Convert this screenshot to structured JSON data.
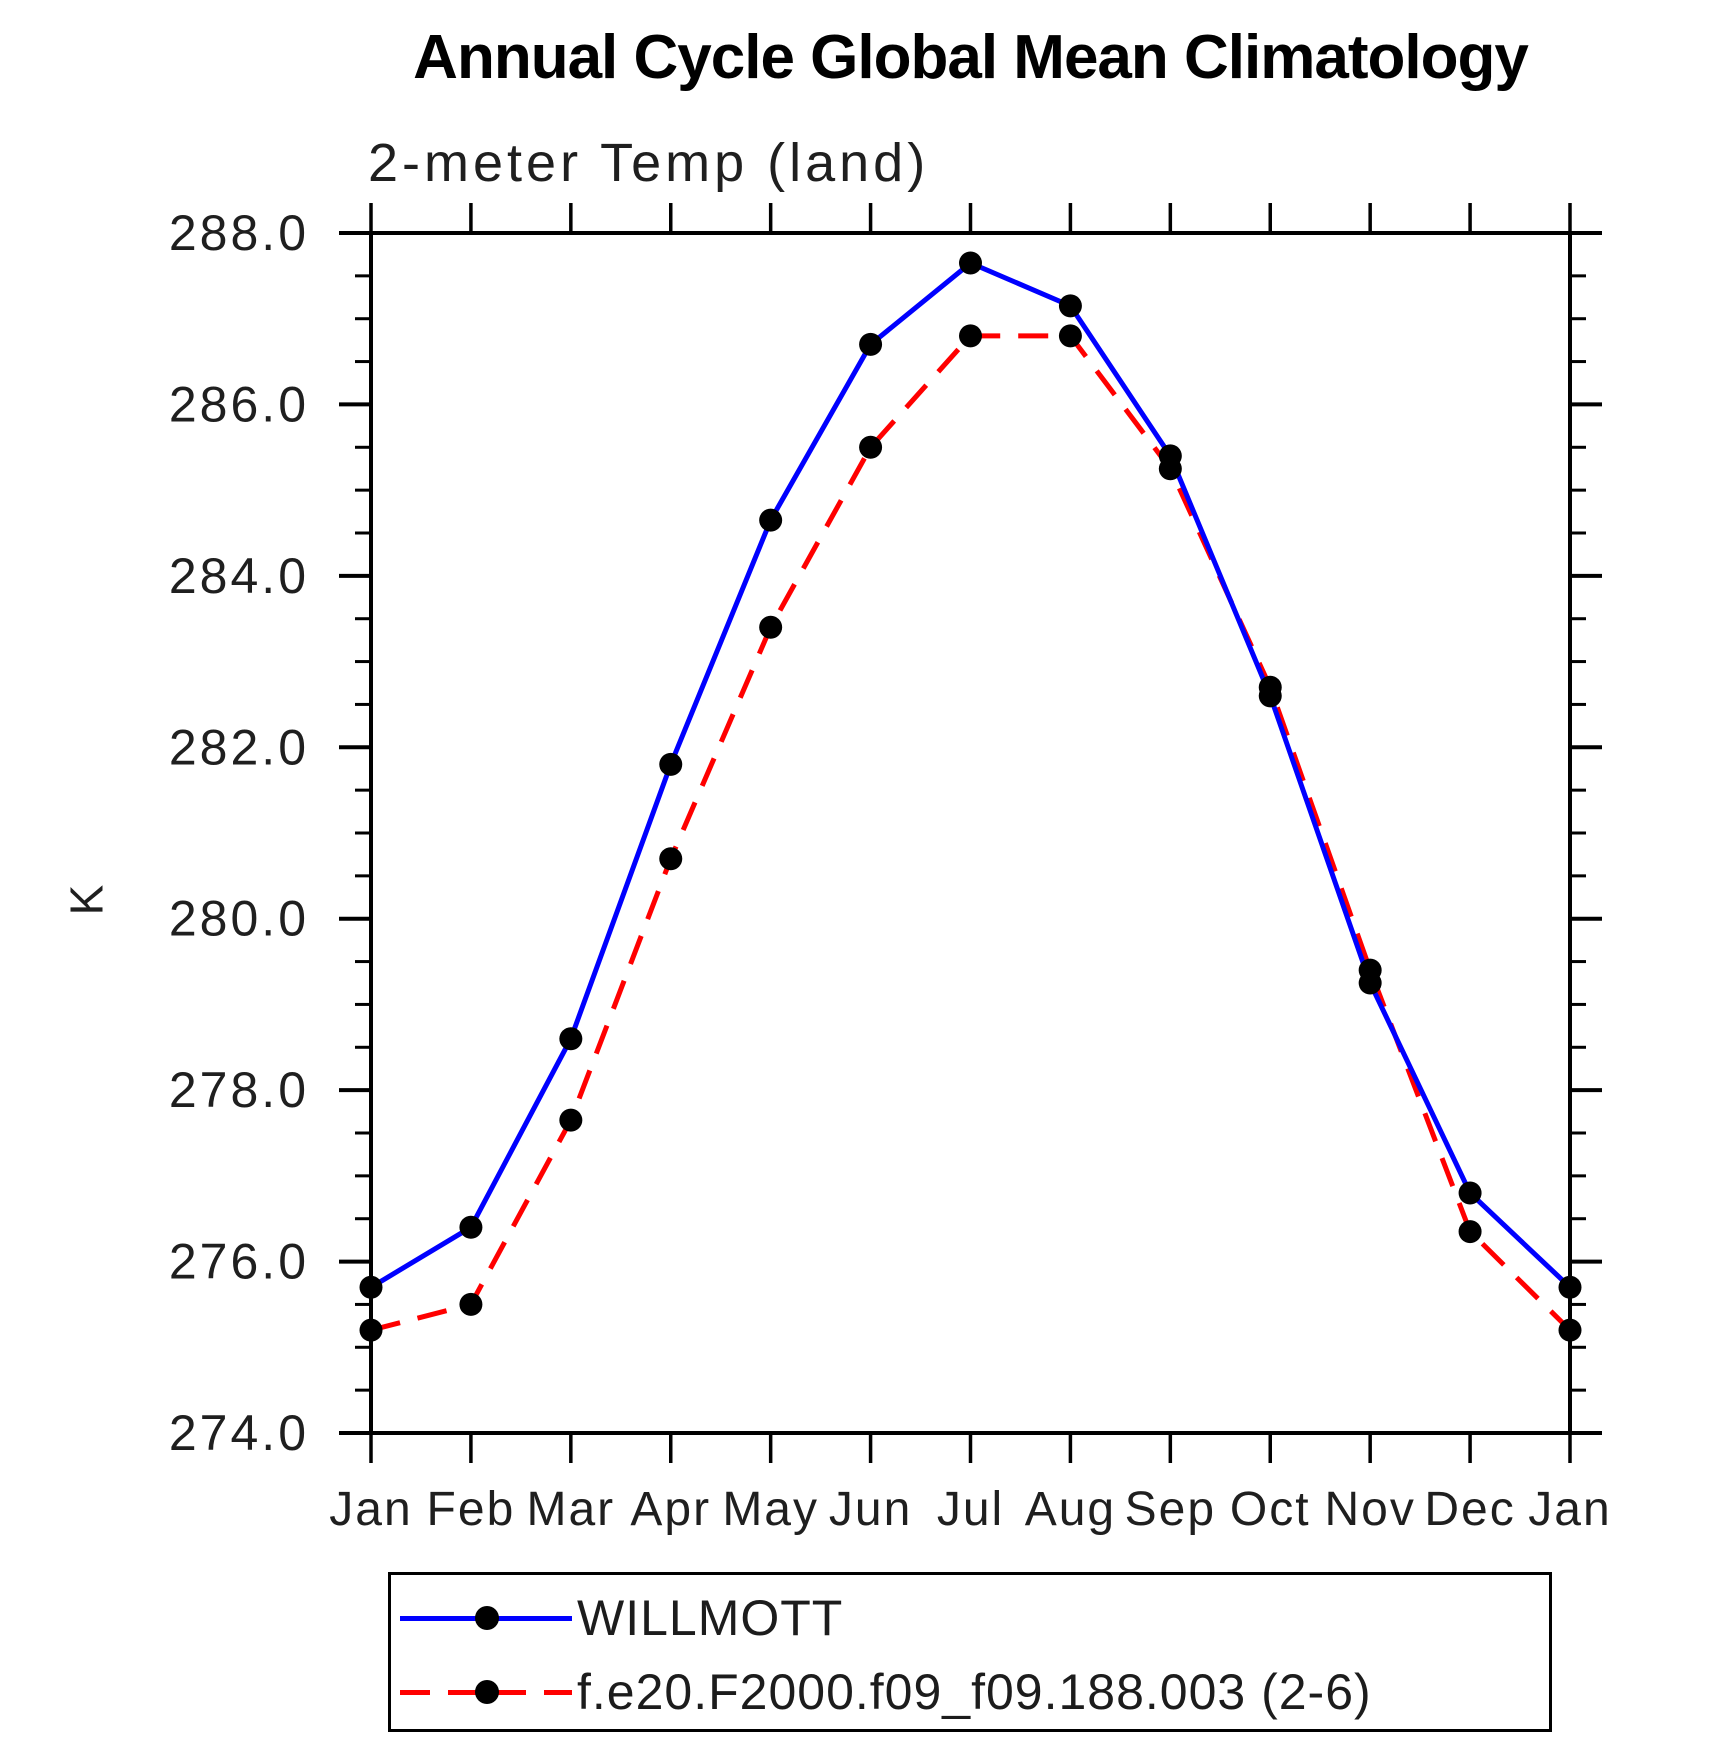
{
  "page": {
    "background": "#ffffff",
    "text_color": "#000000"
  },
  "chart_data": {
    "type": "line",
    "title": "Annual Cycle Global Mean Climatology",
    "subtitle": "2-meter Temp (land)",
    "ylabel": "K",
    "xlabel": "",
    "grid": false,
    "legend_position": "bottom",
    "ylim": [
      274.0,
      288.0
    ],
    "y_major_ticks": [
      274,
      276,
      278,
      280,
      282,
      284,
      286,
      288
    ],
    "y_tick_labels": [
      "274.0",
      "276.0",
      "278.0",
      "280.0",
      "282.0",
      "284.0",
      "286.0",
      "288.0"
    ],
    "y_minor_step": 0.5,
    "x_tick_labels": [
      "Jan",
      "Feb",
      "Mar",
      "Apr",
      "May",
      "Jun",
      "Jul",
      "Aug",
      "Sep",
      "Oct",
      "Nov",
      "Dec",
      "Jan"
    ],
    "series": [
      {
        "name": "WILLMOTT",
        "color": "#0000ff",
        "line_style": "solid",
        "marker": "circle",
        "marker_color": "#000000",
        "values": [
          275.7,
          276.4,
          278.6,
          281.8,
          284.65,
          286.7,
          287.65,
          287.15,
          285.4,
          282.6,
          279.25,
          276.8,
          275.7
        ]
      },
      {
        "name": "f.e20.F2000.f09_f09.188.003 (2-6)",
        "color": "#ff0000",
        "line_style": "dashed",
        "marker": "circle",
        "marker_color": "#000000",
        "values": [
          275.2,
          275.5,
          277.65,
          280.7,
          283.4,
          285.5,
          286.8,
          286.8,
          285.25,
          282.7,
          279.4,
          276.35,
          275.2
        ]
      }
    ]
  }
}
